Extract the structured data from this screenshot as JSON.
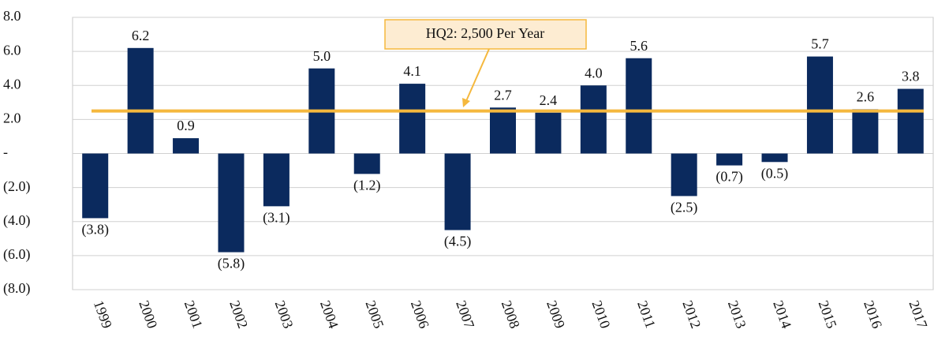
{
  "chart_data": {
    "type": "bar",
    "categories": [
      "1999",
      "2000",
      "2001",
      "2002",
      "2003",
      "2004",
      "2005",
      "2006",
      "2007",
      "2008",
      "2009",
      "2010",
      "2011",
      "2012",
      "2013",
      "2014",
      "2015",
      "2016",
      "2017"
    ],
    "values": [
      -3.8,
      6.2,
      0.9,
      -5.8,
      -3.1,
      5.0,
      -1.2,
      4.1,
      -4.5,
      2.7,
      2.4,
      4.0,
      5.6,
      -2.5,
      -0.7,
      -0.5,
      5.7,
      2.6,
      3.8
    ],
    "value_labels": [
      "(3.8)",
      "6.2",
      "0.9",
      "(5.8)",
      "(3.1)",
      "5.0",
      "(1.2)",
      "4.1",
      "(4.5)",
      "2.7",
      "2.4",
      "4.0",
      "5.6",
      "(2.5)",
      "(0.7)",
      "(0.5)",
      "5.7",
      "2.6",
      "3.8"
    ],
    "color": "#0b2a5e",
    "ylim": [
      -8,
      8
    ],
    "yticks": [
      {
        "value": 8,
        "label": "8.0"
      },
      {
        "value": 6,
        "label": "6.0"
      },
      {
        "value": 4,
        "label": "4.0"
      },
      {
        "value": 2,
        "label": "2.0"
      },
      {
        "value": 0,
        "label": "-"
      },
      {
        "value": -2,
        "label": "(2.0)"
      },
      {
        "value": -4,
        "label": "(4.0)"
      },
      {
        "value": -6,
        "label": "(6.0)"
      },
      {
        "value": -8,
        "label": "(8.0)"
      }
    ],
    "grid": true,
    "reference_line": {
      "value": 2.5,
      "label": "HQ2: 2,500 Per Year",
      "color": "#f5b83d"
    }
  }
}
